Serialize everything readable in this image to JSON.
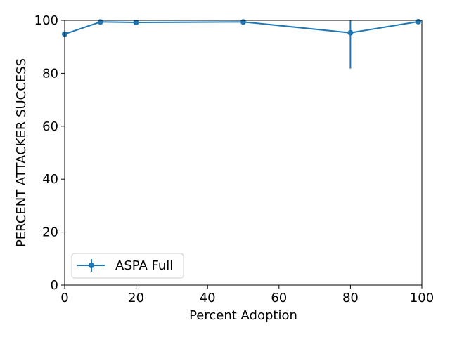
{
  "chart_data": {
    "type": "line",
    "title": "",
    "xlabel": "Percent Adoption",
    "ylabel": "PERCENT ATTACKER SUCCESS",
    "xlim": [
      0,
      100
    ],
    "ylim": [
      0,
      100
    ],
    "xticks": [
      "0",
      "20",
      "40",
      "60",
      "80",
      "100"
    ],
    "yticks": [
      "0",
      "20",
      "40",
      "60",
      "80",
      "100"
    ],
    "grid": false,
    "legend_position": "lower-left",
    "series": [
      {
        "name": "ASPA Full",
        "color": "#1f77b4",
        "x": [
          0,
          10,
          20,
          50,
          80,
          99
        ],
        "y": [
          94.8,
          99.4,
          99.2,
          99.4,
          95.3,
          99.5
        ],
        "error": [
          null,
          null,
          null,
          null,
          13.5,
          null
        ]
      }
    ]
  }
}
